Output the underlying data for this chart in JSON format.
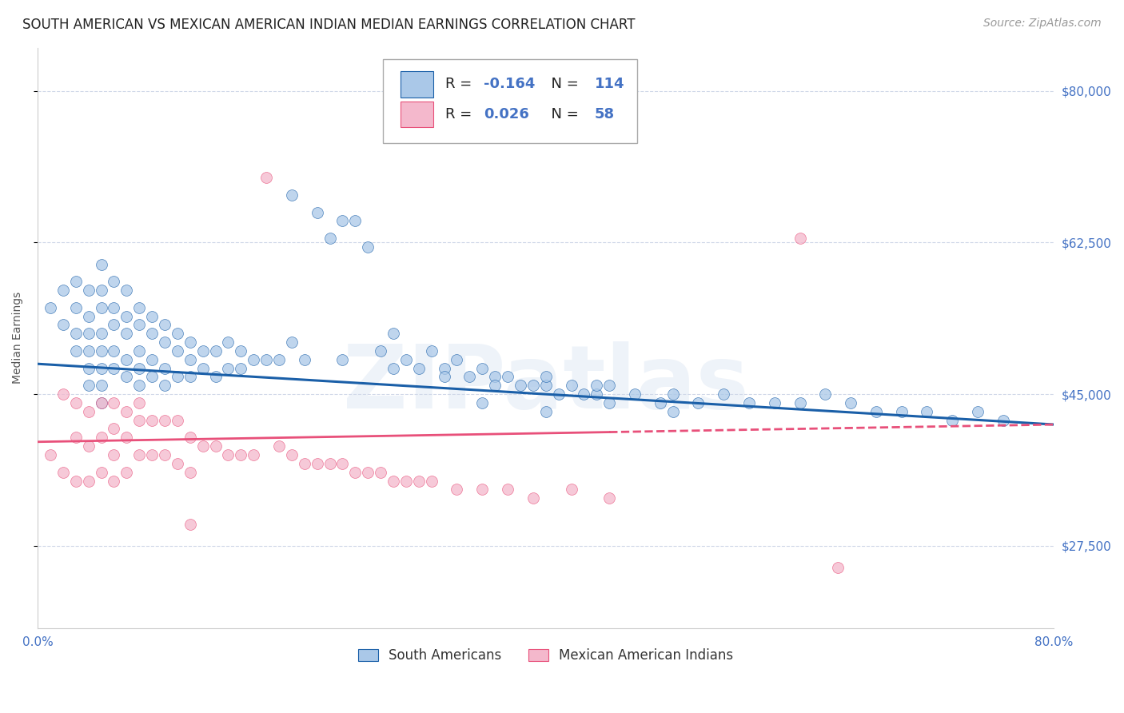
{
  "title": "SOUTH AMERICAN VS MEXICAN AMERICAN INDIAN MEDIAN EARNINGS CORRELATION CHART",
  "source": "Source: ZipAtlas.com",
  "ylabel": "Median Earnings",
  "xlim": [
    0.0,
    0.8
  ],
  "ylim": [
    18000,
    85000
  ],
  "yticks": [
    27500,
    45000,
    62500,
    80000
  ],
  "ytick_labels": [
    "$27,500",
    "$45,000",
    "$62,500",
    "$80,000"
  ],
  "xticks": [
    0.0,
    0.1,
    0.2,
    0.3,
    0.4,
    0.5,
    0.6,
    0.7,
    0.8
  ],
  "xtick_labels": [
    "0.0%",
    "",
    "",
    "",
    "",
    "",
    "",
    "",
    "80.0%"
  ],
  "color_blue": "#aac8e8",
  "color_pink": "#f4b8cc",
  "trend_blue": "#1a5fa8",
  "trend_pink": "#e8507a",
  "tick_color": "#4472c4",
  "watermark": "ZIPatlas",
  "background_color": "#ffffff",
  "blue_scatter_x": [
    0.01,
    0.02,
    0.02,
    0.03,
    0.03,
    0.03,
    0.03,
    0.04,
    0.04,
    0.04,
    0.04,
    0.04,
    0.04,
    0.05,
    0.05,
    0.05,
    0.05,
    0.05,
    0.05,
    0.05,
    0.05,
    0.06,
    0.06,
    0.06,
    0.06,
    0.06,
    0.07,
    0.07,
    0.07,
    0.07,
    0.07,
    0.08,
    0.08,
    0.08,
    0.08,
    0.08,
    0.09,
    0.09,
    0.09,
    0.09,
    0.1,
    0.1,
    0.1,
    0.1,
    0.11,
    0.11,
    0.11,
    0.12,
    0.12,
    0.12,
    0.13,
    0.13,
    0.14,
    0.14,
    0.15,
    0.15,
    0.16,
    0.16,
    0.17,
    0.18,
    0.19,
    0.2,
    0.21,
    0.22,
    0.23,
    0.24,
    0.25,
    0.26,
    0.27,
    0.28,
    0.29,
    0.3,
    0.31,
    0.32,
    0.33,
    0.34,
    0.35,
    0.36,
    0.37,
    0.38,
    0.39,
    0.4,
    0.41,
    0.42,
    0.43,
    0.44,
    0.45,
    0.47,
    0.49,
    0.5,
    0.52,
    0.54,
    0.56,
    0.58,
    0.6,
    0.62,
    0.64,
    0.66,
    0.68,
    0.7,
    0.72,
    0.74,
    0.76,
    0.2,
    0.24,
    0.28,
    0.32,
    0.36,
    0.4,
    0.44,
    0.35,
    0.4,
    0.45,
    0.5
  ],
  "blue_scatter_y": [
    55000,
    57000,
    53000,
    58000,
    55000,
    52000,
    50000,
    57000,
    54000,
    52000,
    50000,
    48000,
    46000,
    60000,
    57000,
    55000,
    52000,
    50000,
    48000,
    46000,
    44000,
    58000,
    55000,
    53000,
    50000,
    48000,
    57000,
    54000,
    52000,
    49000,
    47000,
    55000,
    53000,
    50000,
    48000,
    46000,
    54000,
    52000,
    49000,
    47000,
    53000,
    51000,
    48000,
    46000,
    52000,
    50000,
    47000,
    51000,
    49000,
    47000,
    50000,
    48000,
    50000,
    47000,
    51000,
    48000,
    50000,
    48000,
    49000,
    49000,
    49000,
    68000,
    49000,
    66000,
    63000,
    65000,
    65000,
    62000,
    50000,
    52000,
    49000,
    48000,
    50000,
    48000,
    49000,
    47000,
    48000,
    47000,
    47000,
    46000,
    46000,
    46000,
    45000,
    46000,
    45000,
    45000,
    46000,
    45000,
    44000,
    45000,
    44000,
    45000,
    44000,
    44000,
    44000,
    45000,
    44000,
    43000,
    43000,
    43000,
    42000,
    43000,
    42000,
    51000,
    49000,
    48000,
    47000,
    46000,
    47000,
    46000,
    44000,
    43000,
    44000,
    43000
  ],
  "pink_scatter_x": [
    0.01,
    0.02,
    0.02,
    0.03,
    0.03,
    0.03,
    0.04,
    0.04,
    0.04,
    0.05,
    0.05,
    0.05,
    0.06,
    0.06,
    0.06,
    0.06,
    0.07,
    0.07,
    0.07,
    0.08,
    0.08,
    0.09,
    0.09,
    0.1,
    0.1,
    0.11,
    0.11,
    0.12,
    0.12,
    0.13,
    0.14,
    0.15,
    0.16,
    0.17,
    0.18,
    0.19,
    0.2,
    0.21,
    0.22,
    0.23,
    0.24,
    0.25,
    0.26,
    0.27,
    0.28,
    0.29,
    0.3,
    0.31,
    0.33,
    0.35,
    0.37,
    0.39,
    0.42,
    0.45,
    0.6,
    0.63,
    0.08,
    0.12
  ],
  "pink_scatter_y": [
    38000,
    45000,
    36000,
    44000,
    40000,
    35000,
    43000,
    39000,
    35000,
    44000,
    40000,
    36000,
    44000,
    41000,
    38000,
    35000,
    43000,
    40000,
    36000,
    42000,
    38000,
    42000,
    38000,
    42000,
    38000,
    42000,
    37000,
    40000,
    36000,
    39000,
    39000,
    38000,
    38000,
    38000,
    70000,
    39000,
    38000,
    37000,
    37000,
    37000,
    37000,
    36000,
    36000,
    36000,
    35000,
    35000,
    35000,
    35000,
    34000,
    34000,
    34000,
    33000,
    34000,
    33000,
    63000,
    25000,
    44000,
    30000
  ],
  "title_fontsize": 12,
  "source_fontsize": 10,
  "axis_label_fontsize": 10,
  "tick_fontsize": 11,
  "legend_fontsize": 13
}
